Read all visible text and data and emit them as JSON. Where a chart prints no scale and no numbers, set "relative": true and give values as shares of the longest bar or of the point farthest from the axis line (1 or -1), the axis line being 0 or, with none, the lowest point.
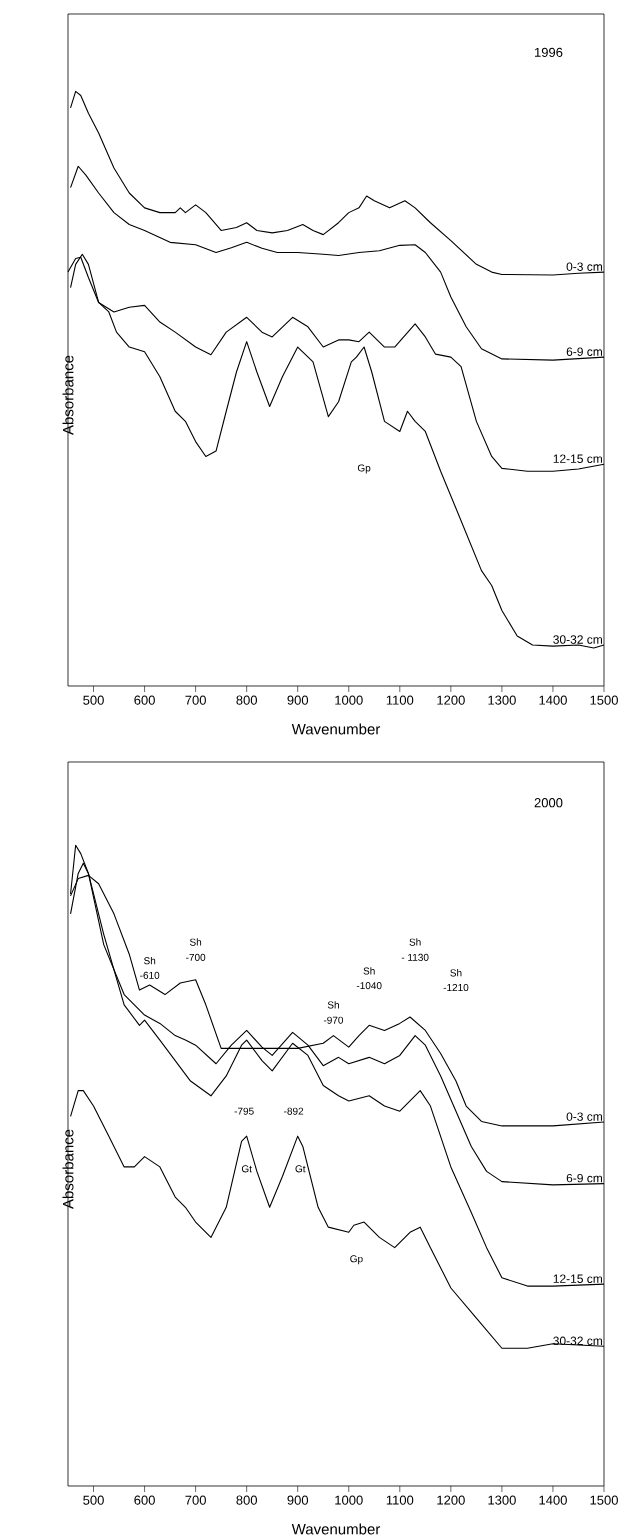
{
  "chart_data": [
    {
      "type": "line",
      "relative": true,
      "title": "1996",
      "xlabel": "Wavenumber",
      "ylabel": "Absorbance",
      "xlim": [
        450,
        1500
      ],
      "xticks": [
        500,
        600,
        700,
        800,
        900,
        1000,
        1100,
        1200,
        1300,
        1400,
        1500
      ],
      "series": [
        {
          "name": "0-3 cm",
          "color": "#000000",
          "x": [
            455,
            465,
            475,
            490,
            510,
            540,
            570,
            600,
            630,
            660,
            670,
            680,
            700,
            720,
            750,
            780,
            800,
            820,
            850,
            880,
            910,
            930,
            950,
            980,
            1000,
            1020,
            1035,
            1050,
            1080,
            1110,
            1130,
            1160,
            1200,
            1250,
            1280,
            1300,
            1400,
            1450,
            1500
          ],
          "values": [
            0.972,
            1.0,
            0.993,
            0.963,
            0.93,
            0.871,
            0.829,
            0.804,
            0.796,
            0.796,
            0.804,
            0.796,
            0.809,
            0.796,
            0.766,
            0.771,
            0.779,
            0.766,
            0.762,
            0.766,
            0.776,
            0.766,
            0.759,
            0.779,
            0.796,
            0.804,
            0.824,
            0.816,
            0.804,
            0.816,
            0.804,
            0.779,
            0.749,
            0.709,
            0.696,
            0.692,
            0.691,
            0.694,
            0.696
          ]
        },
        {
          "name": "6-9 cm",
          "color": "#000000",
          "x": [
            455,
            470,
            485,
            510,
            540,
            570,
            600,
            650,
            700,
            740,
            770,
            800,
            830,
            860,
            900,
            950,
            980,
            1020,
            1060,
            1100,
            1130,
            1150,
            1180,
            1200,
            1230,
            1260,
            1300,
            1400,
            1500
          ],
          "values": [
            0.838,
            0.874,
            0.859,
            0.829,
            0.796,
            0.776,
            0.766,
            0.746,
            0.742,
            0.729,
            0.737,
            0.746,
            0.736,
            0.729,
            0.729,
            0.726,
            0.724,
            0.729,
            0.732,
            0.741,
            0.742,
            0.729,
            0.696,
            0.654,
            0.604,
            0.567,
            0.55,
            0.548,
            0.553
          ]
        },
        {
          "name": "12-15 cm",
          "color": "#000000",
          "x": [
            450,
            465,
            475,
            490,
            510,
            540,
            570,
            600,
            630,
            660,
            700,
            730,
            760,
            800,
            830,
            850,
            890,
            920,
            950,
            980,
            1000,
            1020,
            1040,
            1070,
            1090,
            1130,
            1150,
            1170,
            1200,
            1220,
            1250,
            1280,
            1300,
            1350,
            1400,
            1450,
            1500
          ],
          "values": [
            0.696,
            0.719,
            0.721,
            0.687,
            0.645,
            0.629,
            0.637,
            0.64,
            0.612,
            0.595,
            0.57,
            0.557,
            0.595,
            0.62,
            0.595,
            0.587,
            0.62,
            0.604,
            0.57,
            0.582,
            0.582,
            0.579,
            0.595,
            0.57,
            0.57,
            0.609,
            0.587,
            0.558,
            0.553,
            0.537,
            0.445,
            0.386,
            0.366,
            0.361,
            0.361,
            0.365,
            0.373
          ]
        },
        {
          "name": "30-32 cm",
          "color": "#000000",
          "x": [
            455,
            465,
            478,
            490,
            510,
            530,
            545,
            570,
            600,
            630,
            660,
            680,
            700,
            720,
            740,
            760,
            780,
            800,
            820,
            845,
            870,
            900,
            930,
            960,
            980,
            1005,
            1015,
            1030,
            1045,
            1070,
            1100,
            1115,
            1130,
            1150,
            1180,
            1220,
            1260,
            1280,
            1300,
            1330,
            1360,
            1400,
            1450,
            1480,
            1500
          ],
          "values": [
            0.67,
            0.709,
            0.726,
            0.709,
            0.645,
            0.629,
            0.595,
            0.57,
            0.562,
            0.52,
            0.462,
            0.445,
            0.411,
            0.386,
            0.395,
            0.462,
            0.528,
            0.579,
            0.528,
            0.47,
            0.52,
            0.57,
            0.545,
            0.453,
            0.478,
            0.545,
            0.553,
            0.57,
            0.528,
            0.445,
            0.428,
            0.462,
            0.445,
            0.428,
            0.361,
            0.278,
            0.194,
            0.169,
            0.127,
            0.084,
            0.069,
            0.067,
            0.069,
            0.064,
            0.069
          ]
        }
      ],
      "annotations": [
        "Gp"
      ]
    },
    {
      "type": "line",
      "relative": true,
      "title": "2000",
      "xlabel": "Wavenumber",
      "ylabel": "Absorbance",
      "xlim": [
        450,
        1500
      ],
      "xticks": [
        500,
        600,
        700,
        800,
        900,
        1000,
        1100,
        1200,
        1300,
        1400,
        1500
      ],
      "series": [
        {
          "name": "0-3 cm",
          "color": "#000000",
          "x": [
            455,
            470,
            490,
            510,
            540,
            570,
            590,
            610,
            640,
            670,
            700,
            720,
            750,
            800,
            850,
            900,
            950,
            970,
            1000,
            1020,
            1040,
            1070,
            1100,
            1120,
            1150,
            1180,
            1210,
            1230,
            1260,
            1300,
            1400,
            1500
          ],
          "values": [
            0.921,
            0.948,
            0.953,
            0.94,
            0.893,
            0.83,
            0.774,
            0.782,
            0.767,
            0.785,
            0.79,
            0.751,
            0.683,
            0.683,
            0.683,
            0.683,
            0.691,
            0.703,
            0.685,
            0.703,
            0.719,
            0.711,
            0.722,
            0.732,
            0.711,
            0.675,
            0.632,
            0.593,
            0.569,
            0.562,
            0.562,
            0.568
          ]
        },
        {
          "name": "6-9 cm",
          "color": "#000000",
          "x": [
            455,
            465,
            475,
            490,
            520,
            560,
            600,
            630,
            660,
            680,
            700,
            740,
            770,
            800,
            830,
            850,
            890,
            920,
            950,
            980,
            1000,
            1040,
            1070,
            1100,
            1130,
            1150,
            1180,
            1210,
            1240,
            1270,
            1300,
            1400,
            1500
          ],
          "values": [
            0.924,
            1.0,
            0.987,
            0.956,
            0.845,
            0.767,
            0.735,
            0.722,
            0.703,
            0.696,
            0.688,
            0.659,
            0.688,
            0.711,
            0.685,
            0.672,
            0.708,
            0.688,
            0.656,
            0.669,
            0.659,
            0.669,
            0.659,
            0.672,
            0.703,
            0.688,
            0.64,
            0.585,
            0.53,
            0.491,
            0.475,
            0.47,
            0.472
          ]
        },
        {
          "name": "12-15 cm",
          "color": "#000000",
          "x": [
            455,
            470,
            480,
            490,
            520,
            560,
            590,
            600,
            630,
            660,
            690,
            730,
            760,
            790,
            800,
            830,
            850,
            890,
            920,
            950,
            980,
            1000,
            1040,
            1070,
            1100,
            1140,
            1160,
            1200,
            1240,
            1270,
            1300,
            1350,
            1400,
            1500
          ],
          "values": [
            0.893,
            0.956,
            0.972,
            0.956,
            0.861,
            0.751,
            0.719,
            0.727,
            0.696,
            0.664,
            0.632,
            0.609,
            0.64,
            0.688,
            0.696,
            0.664,
            0.648,
            0.691,
            0.672,
            0.625,
            0.609,
            0.601,
            0.609,
            0.593,
            0.585,
            0.617,
            0.593,
            0.498,
            0.427,
            0.372,
            0.325,
            0.312,
            0.312,
            0.315
          ]
        },
        {
          "name": "30-32 cm",
          "color": "#000000",
          "x": [
            455,
            470,
            480,
            500,
            530,
            560,
            580,
            600,
            630,
            660,
            680,
            700,
            730,
            760,
            790,
            800,
            820,
            845,
            870,
            900,
            910,
            940,
            960,
            1000,
            1010,
            1030,
            1060,
            1090,
            1120,
            1140,
            1160,
            1200,
            1250,
            1300,
            1350,
            1400,
            1500
          ],
          "values": [
            0.577,
            0.617,
            0.617,
            0.593,
            0.546,
            0.498,
            0.498,
            0.514,
            0.498,
            0.451,
            0.435,
            0.412,
            0.388,
            0.435,
            0.538,
            0.546,
            0.491,
            0.435,
            0.483,
            0.546,
            0.53,
            0.435,
            0.404,
            0.396,
            0.407,
            0.412,
            0.388,
            0.372,
            0.396,
            0.404,
            0.372,
            0.309,
            0.262,
            0.215,
            0.215,
            0.222,
            0.218
          ]
        }
      ],
      "annotations": [
        "Sh",
        "-610",
        "Sh",
        "-700",
        "Sh",
        "-970",
        "Sh",
        "-1040",
        "Sh",
        "- 1130",
        "Sh",
        "-1210",
        "-795",
        "Gt",
        "-892",
        "Gt",
        "Gp"
      ]
    }
  ]
}
